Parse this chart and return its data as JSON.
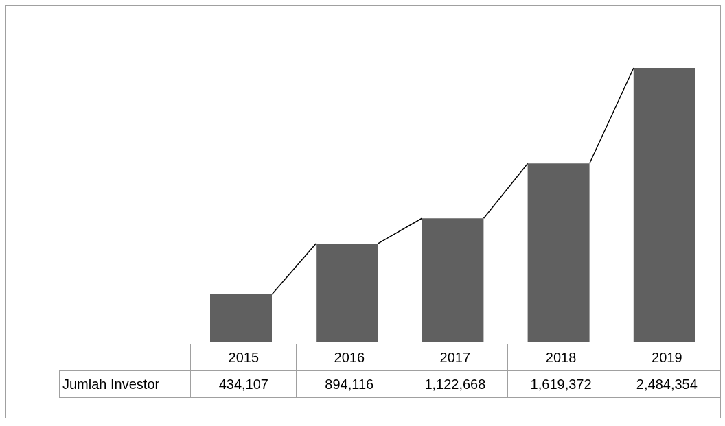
{
  "chart_data": {
    "type": "bar",
    "categories": [
      "2015",
      "2016",
      "2017",
      "2018",
      "2019"
    ],
    "series": [
      {
        "name": "Jumlah Investor",
        "color": "#606060",
        "values": [
          434107,
          894116,
          1122668,
          1619372,
          2484354
        ],
        "value_labels": [
          "434,107",
          "894,116",
          "1,122,668",
          "1,619,372",
          "2,484,354"
        ]
      }
    ]
  }
}
